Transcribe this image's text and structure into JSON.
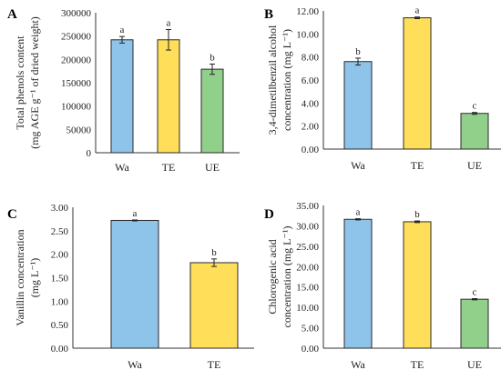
{
  "colors": {
    "Wa": "#8ec3ea",
    "TE": "#ffde59",
    "UE": "#91d08a",
    "bar_stroke": "#2a2a2a",
    "axis": "#333333"
  },
  "chart_data": [
    {
      "panel": "A",
      "type": "bar",
      "ylabel_lines": [
        "Total phenols content",
        "(mg AGE g⁻¹ of dried weight)"
      ],
      "categories": [
        "Wa",
        "TE",
        "UE"
      ],
      "values": [
        242000,
        242000,
        179000
      ],
      "errors": [
        7000,
        22000,
        11000
      ],
      "letters": [
        "a",
        "a",
        "b"
      ],
      "ylim": [
        0,
        300000
      ],
      "yticks": [
        "0",
        "50000",
        "100000",
        "150000",
        "200000",
        "250000",
        "300000"
      ],
      "yticks_values": [
        0,
        50000,
        100000,
        150000,
        200000,
        250000,
        300000
      ]
    },
    {
      "panel": "B",
      "type": "bar",
      "ylabel_lines": [
        "3,4-dimetilbenzil  alcohol",
        "concentration  (mg L⁻¹)"
      ],
      "categories": [
        "Wa",
        "TE",
        "UE"
      ],
      "values": [
        7.6,
        11.4,
        3.1
      ],
      "errors": [
        0.3,
        0.07,
        0.08
      ],
      "letters": [
        "b",
        "a",
        "c"
      ],
      "ylim": [
        0,
        12
      ],
      "yticks": [
        "0.00",
        "2.00",
        "4.00",
        "6.00",
        "8.00",
        "10.00",
        "12.00"
      ],
      "yticks_values": [
        0,
        2,
        4,
        6,
        8,
        10,
        12
      ]
    },
    {
      "panel": "C",
      "type": "bar",
      "ylabel_lines": [
        "Vanillin  concentration",
        "(mg L⁻¹)"
      ],
      "categories": [
        "Wa",
        "TE"
      ],
      "values": [
        2.72,
        1.82
      ],
      "errors": [
        0.01,
        0.08
      ],
      "letters": [
        "a",
        "b"
      ],
      "ylim": [
        0,
        3
      ],
      "yticks": [
        "0.00",
        "0.50",
        "1.00",
        "1.50",
        "2.00",
        "2.50",
        "3.00"
      ],
      "yticks_values": [
        0,
        0.5,
        1,
        1.5,
        2,
        2.5,
        3
      ]
    },
    {
      "panel": "D",
      "type": "bar",
      "ylabel_lines": [
        "Chlorogenic  acid",
        "concentration  (mg L⁻¹)"
      ],
      "categories": [
        "Wa",
        "TE",
        "UE"
      ],
      "values": [
        31.6,
        31.0,
        12.0
      ],
      "errors": [
        0.15,
        0.2,
        0.15
      ],
      "letters": [
        "a",
        "b",
        "c"
      ],
      "ylim": [
        0,
        35
      ],
      "yticks": [
        "0.00",
        "5.00",
        "10.00",
        "15.00",
        "20.00",
        "25.00",
        "30.00",
        "35.00"
      ],
      "yticks_values": [
        0,
        5,
        10,
        15,
        20,
        25,
        30,
        35
      ]
    }
  ]
}
